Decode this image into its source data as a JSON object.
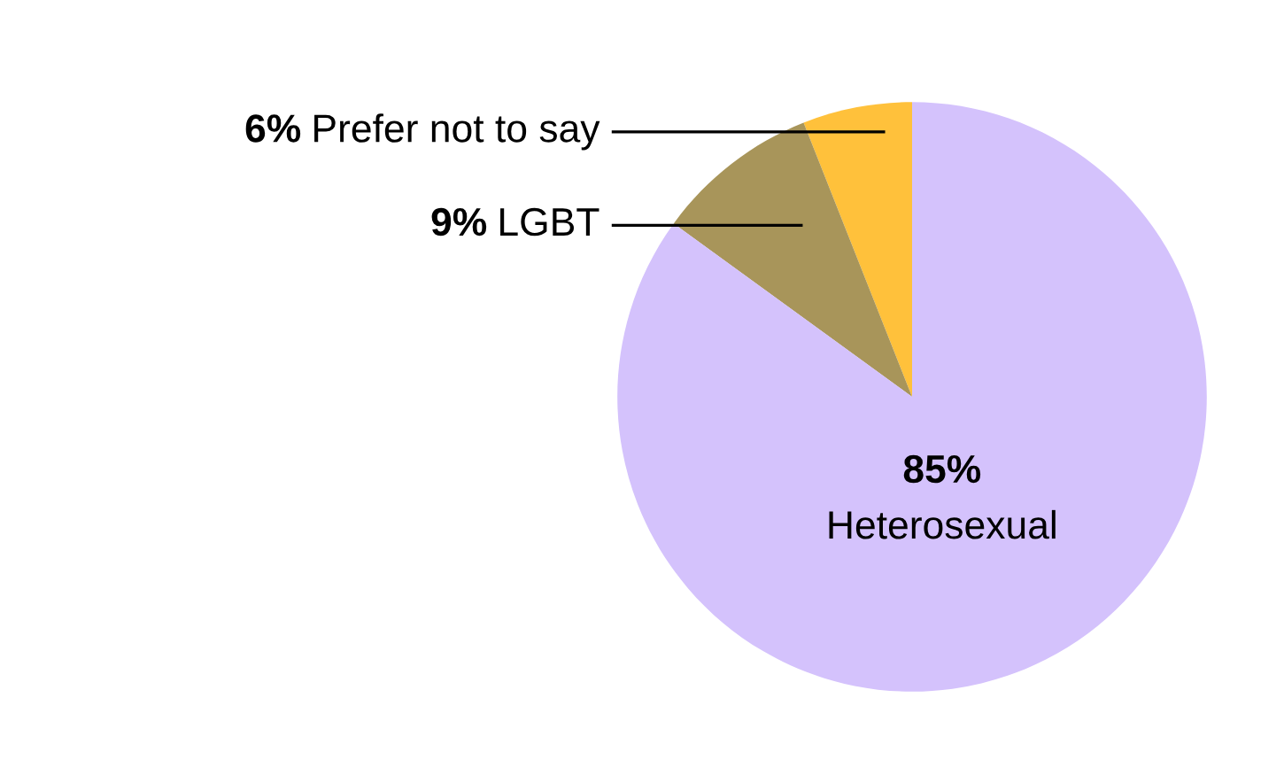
{
  "chart_data": {
    "type": "pie",
    "categories": [
      "Prefer not to say",
      "LGBT",
      "Heterosexual"
    ],
    "values": [
      6,
      9,
      85
    ],
    "colors": [
      "#ffc13b",
      "#a8955a",
      "#d4c2fc"
    ],
    "value_labels": [
      "6%",
      "9%",
      "85%"
    ]
  }
}
